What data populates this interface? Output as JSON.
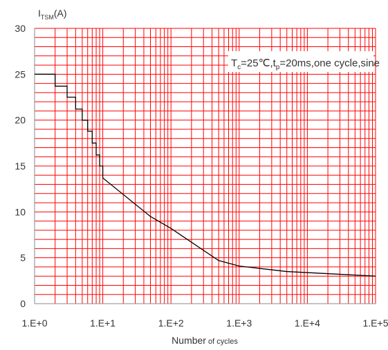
{
  "chart_data": {
    "type": "line",
    "x_scale": "log",
    "grid": true,
    "xlim": [
      1,
      100000
    ],
    "ylim": [
      0,
      30
    ],
    "x_tick_values": [
      1,
      10,
      100,
      1000,
      10000,
      100000
    ],
    "x_tick_labels": [
      "1.E+0",
      "1.E+1",
      "1.E+2",
      "1.E+3",
      "1.E+4",
      "1.E+5"
    ],
    "y_tick_values": [
      0,
      5,
      10,
      15,
      20,
      25,
      30
    ],
    "y_tick_labels": [
      "0",
      "5",
      "10",
      "15",
      "20",
      "25",
      "30"
    ],
    "ylabel": {
      "main": "I",
      "sub": "TSM",
      "unit": "(A)"
    },
    "xlabel": {
      "main": "Number",
      "suffix": " of cycles"
    },
    "annotation": {
      "parts": [
        {
          "t": "T",
          "sub": false
        },
        {
          "t": "c",
          "sub": true
        },
        {
          "t": "=25℃,t",
          "sub": false
        },
        {
          "t": "p",
          "sub": true
        },
        {
          "t": "=20ms,one cycle,sine",
          "sub": false
        }
      ]
    },
    "colors": {
      "grid": "#ff0000",
      "line": "#000000",
      "text": "#333333"
    },
    "series": [
      {
        "x": [
          1,
          2,
          2,
          3,
          3,
          4,
          4,
          5,
          5,
          6,
          6,
          7,
          7,
          8,
          8,
          9,
          9,
          10,
          10,
          50,
          100,
          500,
          1000,
          5000,
          100000
        ],
        "y": [
          25.0,
          25.0,
          23.7,
          23.7,
          22.5,
          22.5,
          21.2,
          21.2,
          20.0,
          20.0,
          18.8,
          18.8,
          17.5,
          17.5,
          16.2,
          16.2,
          15.0,
          15.0,
          13.7,
          9.5,
          8.2,
          4.7,
          4.1,
          3.5,
          3.0
        ]
      }
    ]
  }
}
